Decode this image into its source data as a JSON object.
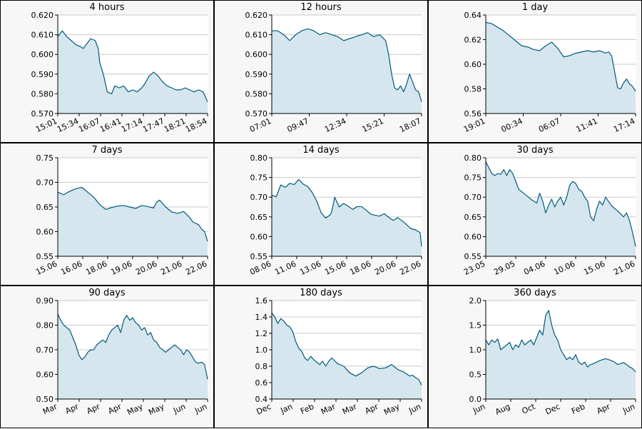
{
  "style": {
    "line_color": "#005a7a",
    "fill_color": "#d5e6ee",
    "grid_color": "#c8c8c8",
    "panel_bg": "#f7f7f7",
    "plot_bg": "#ffffff"
  },
  "chart_data": [
    {
      "type": "area",
      "title": "4 hours",
      "ylim": [
        0.57,
        0.62
      ],
      "yticks": [
        "0.570",
        "0.580",
        "0.590",
        "0.600",
        "0.610",
        "0.620"
      ],
      "xticks": [
        "15:01",
        "15:34",
        "16:07",
        "16:41",
        "17:14",
        "17:47",
        "18:21",
        "18:54"
      ],
      "x": [
        0,
        3,
        6,
        9,
        12,
        15,
        17,
        19,
        22,
        25,
        27,
        28,
        30,
        31,
        33,
        36,
        38,
        41,
        44,
        47,
        50,
        53,
        56,
        58,
        61,
        64,
        67,
        70,
        73,
        76,
        79,
        82,
        85,
        88,
        91,
        94,
        97,
        100
      ],
      "y": [
        0.609,
        0.612,
        0.609,
        0.607,
        0.605,
        0.604,
        0.603,
        0.605,
        0.608,
        0.607,
        0.603,
        0.596,
        0.591,
        0.588,
        0.581,
        0.58,
        0.584,
        0.583,
        0.584,
        0.581,
        0.582,
        0.581,
        0.583,
        0.585,
        0.589,
        0.591,
        0.589,
        0.586,
        0.584,
        0.583,
        0.582,
        0.582,
        0.583,
        0.582,
        0.581,
        0.582,
        0.581,
        0.576
      ]
    },
    {
      "type": "area",
      "title": "12 hours",
      "ylim": [
        0.57,
        0.62
      ],
      "yticks": [
        "0.570",
        "0.580",
        "0.590",
        "0.600",
        "0.610",
        "0.620"
      ],
      "xticks": [
        "07:01",
        "09:47",
        "12:34",
        "15:21",
        "18:07"
      ],
      "x": [
        0,
        4,
        8,
        12,
        16,
        20,
        24,
        28,
        32,
        36,
        40,
        44,
        48,
        52,
        56,
        60,
        64,
        68,
        72,
        76,
        78,
        80,
        82,
        84,
        86,
        88,
        90,
        92,
        94,
        96,
        98,
        100
      ],
      "y": [
        0.612,
        0.612,
        0.61,
        0.607,
        0.61,
        0.612,
        0.613,
        0.612,
        0.61,
        0.611,
        0.61,
        0.609,
        0.607,
        0.608,
        0.609,
        0.61,
        0.611,
        0.609,
        0.61,
        0.607,
        0.6,
        0.59,
        0.583,
        0.582,
        0.584,
        0.581,
        0.585,
        0.59,
        0.586,
        0.582,
        0.581,
        0.576
      ]
    },
    {
      "type": "area",
      "title": "1 day",
      "ylim": [
        0.56,
        0.64
      ],
      "yticks": [
        "0.56",
        "0.58",
        "0.60",
        "0.62",
        "0.64"
      ],
      "xticks": [
        "19:01",
        "00:34",
        "06:07",
        "11:41",
        "17:14"
      ],
      "x": [
        0,
        4,
        8,
        12,
        16,
        20,
        24,
        28,
        32,
        36,
        40,
        44,
        48,
        52,
        56,
        60,
        64,
        68,
        72,
        76,
        80,
        82,
        84,
        86,
        88,
        90,
        92,
        94,
        96,
        98,
        100
      ],
      "y": [
        0.634,
        0.633,
        0.63,
        0.627,
        0.623,
        0.619,
        0.615,
        0.614,
        0.612,
        0.611,
        0.615,
        0.618,
        0.613,
        0.606,
        0.607,
        0.609,
        0.61,
        0.611,
        0.61,
        0.611,
        0.609,
        0.61,
        0.607,
        0.594,
        0.581,
        0.58,
        0.585,
        0.588,
        0.584,
        0.582,
        0.578
      ]
    },
    {
      "type": "area",
      "title": "7 days",
      "ylim": [
        0.55,
        0.75
      ],
      "yticks": [
        "0.55",
        "0.60",
        "0.65",
        "0.70",
        "0.75"
      ],
      "xticks": [
        "15.06",
        "16.06",
        "18.06",
        "19.06",
        "20.06",
        "21.06",
        "22.06"
      ],
      "x": [
        0,
        4,
        8,
        12,
        16,
        18,
        20,
        24,
        28,
        32,
        36,
        40,
        44,
        48,
        52,
        56,
        60,
        64,
        66,
        68,
        72,
        76,
        80,
        84,
        88,
        90,
        92,
        94,
        96,
        98,
        100
      ],
      "y": [
        0.68,
        0.675,
        0.682,
        0.687,
        0.69,
        0.685,
        0.68,
        0.67,
        0.655,
        0.645,
        0.649,
        0.652,
        0.653,
        0.65,
        0.647,
        0.653,
        0.651,
        0.648,
        0.66,
        0.664,
        0.65,
        0.64,
        0.637,
        0.641,
        0.629,
        0.62,
        0.617,
        0.614,
        0.605,
        0.6,
        0.58
      ]
    },
    {
      "type": "area",
      "title": "14 days",
      "ylim": [
        0.55,
        0.8
      ],
      "yticks": [
        "0.55",
        "0.60",
        "0.65",
        "0.70",
        "0.75",
        "0.80"
      ],
      "xticks": [
        "08.06",
        "11.06",
        "13.06",
        "15.06",
        "18.06",
        "20.06",
        "22.06"
      ],
      "x": [
        0,
        3,
        6,
        9,
        12,
        15,
        18,
        21,
        24,
        27,
        30,
        33,
        36,
        39,
        40,
        42,
        45,
        48,
        51,
        54,
        57,
        60,
        63,
        66,
        69,
        72,
        75,
        78,
        81,
        84,
        87,
        90,
        93,
        96,
        99,
        100
      ],
      "y": [
        0.705,
        0.701,
        0.731,
        0.725,
        0.735,
        0.732,
        0.745,
        0.733,
        0.727,
        0.712,
        0.69,
        0.66,
        0.647,
        0.655,
        0.663,
        0.7,
        0.675,
        0.684,
        0.677,
        0.669,
        0.676,
        0.676,
        0.667,
        0.657,
        0.654,
        0.652,
        0.658,
        0.649,
        0.641,
        0.648,
        0.64,
        0.63,
        0.62,
        0.617,
        0.61,
        0.575
      ]
    },
    {
      "type": "area",
      "title": "30 days",
      "ylim": [
        0.55,
        0.8
      ],
      "yticks": [
        "0.55",
        "0.60",
        "0.65",
        "0.70",
        "0.75",
        "0.80"
      ],
      "xticks": [
        "23.05",
        "29.05",
        "04.06",
        "10.06",
        "15.06",
        "21.06"
      ],
      "x": [
        0,
        2,
        4,
        6,
        8,
        10,
        12,
        14,
        16,
        18,
        20,
        22,
        26,
        30,
        34,
        36,
        38,
        40,
        42,
        44,
        46,
        48,
        50,
        52,
        54,
        56,
        58,
        60,
        62,
        64,
        66,
        68,
        70,
        72,
        74,
        76,
        78,
        80,
        84,
        88,
        92,
        94,
        96,
        98,
        100
      ],
      "y": [
        0.79,
        0.775,
        0.76,
        0.755,
        0.76,
        0.758,
        0.77,
        0.755,
        0.77,
        0.76,
        0.74,
        0.72,
        0.708,
        0.695,
        0.685,
        0.71,
        0.69,
        0.66,
        0.68,
        0.695,
        0.675,
        0.69,
        0.7,
        0.68,
        0.7,
        0.73,
        0.74,
        0.735,
        0.72,
        0.715,
        0.7,
        0.69,
        0.65,
        0.64,
        0.67,
        0.69,
        0.68,
        0.7,
        0.678,
        0.665,
        0.65,
        0.66,
        0.64,
        0.61,
        0.575
      ]
    },
    {
      "type": "area",
      "title": "90 days",
      "ylim": [
        0.5,
        0.9
      ],
      "yticks": [
        "0.50",
        "0.60",
        "0.70",
        "0.80",
        "0.90"
      ],
      "xticks": [
        "Mar",
        "Apr",
        "Apr",
        "Apr",
        "May",
        "May",
        "Jun",
        "Jun"
      ],
      "x": [
        0,
        2,
        4,
        6,
        8,
        10,
        12,
        14,
        16,
        18,
        20,
        22,
        24,
        26,
        28,
        30,
        32,
        34,
        36,
        38,
        40,
        42,
        44,
        46,
        48,
        50,
        52,
        54,
        56,
        58,
        60,
        62,
        64,
        66,
        68,
        70,
        72,
        74,
        76,
        78,
        80,
        82,
        84,
        86,
        88,
        90,
        92,
        94,
        96,
        98,
        100
      ],
      "y": [
        0.845,
        0.82,
        0.8,
        0.79,
        0.78,
        0.75,
        0.72,
        0.68,
        0.66,
        0.67,
        0.69,
        0.7,
        0.7,
        0.72,
        0.73,
        0.74,
        0.73,
        0.76,
        0.78,
        0.79,
        0.8,
        0.77,
        0.82,
        0.84,
        0.82,
        0.83,
        0.81,
        0.8,
        0.78,
        0.79,
        0.76,
        0.77,
        0.74,
        0.73,
        0.71,
        0.7,
        0.69,
        0.7,
        0.71,
        0.72,
        0.71,
        0.7,
        0.68,
        0.7,
        0.69,
        0.67,
        0.65,
        0.645,
        0.65,
        0.64,
        0.58
      ]
    },
    {
      "type": "area",
      "title": "180 days",
      "ylim": [
        0.4,
        1.6
      ],
      "yticks": [
        "0.4",
        "0.6",
        "0.8",
        "1.0",
        "1.2",
        "1.4",
        "1.6"
      ],
      "xticks": [
        "Dec",
        "Jan",
        "Feb",
        "Mar",
        "Mar",
        "Apr",
        "May",
        "Jun"
      ],
      "x": [
        0,
        2,
        4,
        6,
        8,
        10,
        12,
        14,
        16,
        18,
        20,
        22,
        24,
        26,
        28,
        30,
        32,
        34,
        36,
        38,
        40,
        44,
        48,
        52,
        56,
        60,
        64,
        68,
        72,
        76,
        80,
        84,
        88,
        92,
        94,
        96,
        98,
        100
      ],
      "y": [
        1.45,
        1.4,
        1.32,
        1.38,
        1.35,
        1.3,
        1.28,
        1.22,
        1.1,
        1.02,
        0.98,
        0.9,
        0.87,
        0.92,
        0.88,
        0.85,
        0.82,
        0.86,
        0.8,
        0.86,
        0.9,
        0.83,
        0.8,
        0.72,
        0.68,
        0.72,
        0.78,
        0.8,
        0.77,
        0.78,
        0.82,
        0.76,
        0.73,
        0.68,
        0.69,
        0.66,
        0.64,
        0.57
      ]
    },
    {
      "type": "area",
      "title": "360 days",
      "ylim": [
        0,
        2.0
      ],
      "yticks": [
        "0.0",
        "0.5",
        "1.0",
        "1.5",
        "2.0"
      ],
      "xticks": [
        "Jun",
        "Aug",
        "Oct",
        "Dec",
        "Feb",
        "Apr",
        "Jun"
      ],
      "x": [
        0,
        2,
        4,
        6,
        8,
        10,
        12,
        14,
        16,
        18,
        20,
        22,
        24,
        26,
        28,
        30,
        32,
        34,
        36,
        38,
        40,
        42,
        44,
        46,
        48,
        50,
        52,
        54,
        56,
        58,
        60,
        62,
        64,
        66,
        68,
        70,
        72,
        74,
        76,
        78,
        80,
        82,
        84,
        86,
        88,
        90,
        92,
        94,
        96,
        98,
        100
      ],
      "y": [
        1.2,
        1.1,
        1.2,
        1.15,
        1.22,
        1.0,
        1.05,
        1.1,
        1.15,
        1.0,
        1.1,
        1.05,
        1.2,
        1.1,
        1.15,
        1.2,
        1.1,
        1.25,
        1.4,
        1.3,
        1.7,
        1.8,
        1.5,
        1.3,
        1.2,
        1.0,
        0.9,
        0.8,
        0.85,
        0.8,
        0.9,
        0.75,
        0.7,
        0.75,
        0.65,
        0.7,
        0.72,
        0.75,
        0.78,
        0.8,
        0.82,
        0.8,
        0.78,
        0.75,
        0.7,
        0.72,
        0.74,
        0.7,
        0.65,
        0.62,
        0.55
      ]
    }
  ]
}
